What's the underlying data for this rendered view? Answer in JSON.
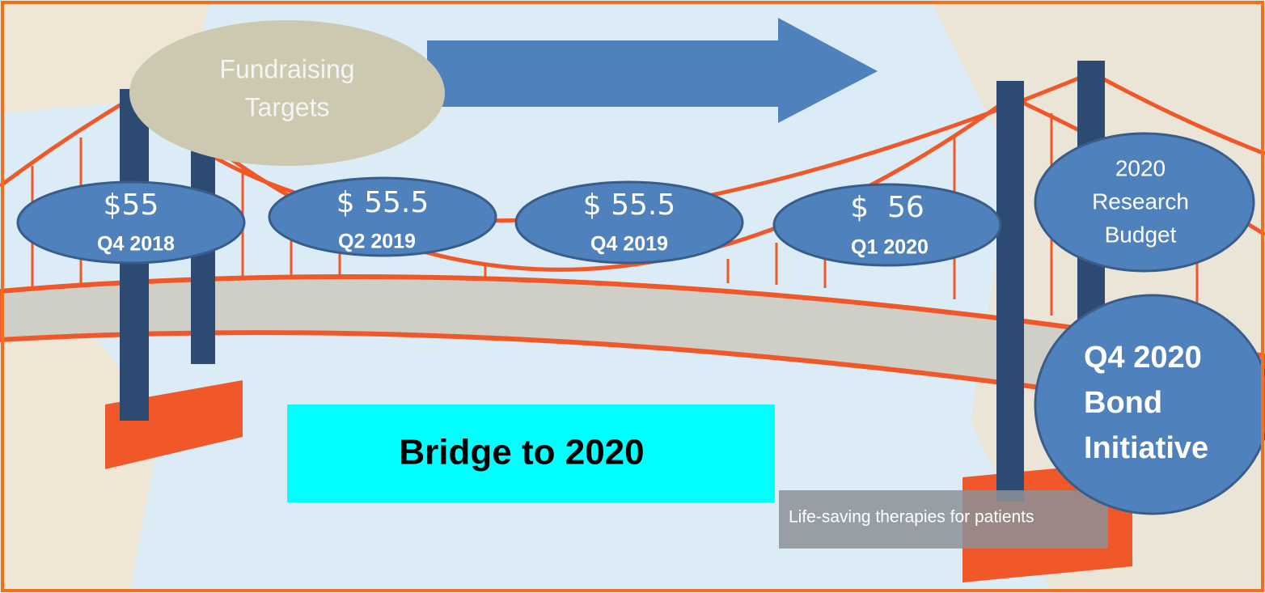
{
  "fundraising_label": {
    "lines": [
      "Fundraising",
      "Targets"
    ]
  },
  "milestones": [
    {
      "amount": "$55",
      "quarter": "Q4 2018"
    },
    {
      "amount": "$ 55.5",
      "quarter": "Q2 2019"
    },
    {
      "amount": "$ 55.5",
      "quarter": "Q4 2019"
    },
    {
      "amount": "$  56",
      "quarter": "Q1 2020"
    }
  ],
  "research_budget": {
    "lines": [
      "2020",
      "Research",
      "Budget"
    ]
  },
  "bond": {
    "lines": [
      "Q4 2020",
      "Bond",
      "Initiative"
    ]
  },
  "banner": {
    "title": "Bridge to 2020"
  },
  "caption": "Life-saving therapies for patients"
}
